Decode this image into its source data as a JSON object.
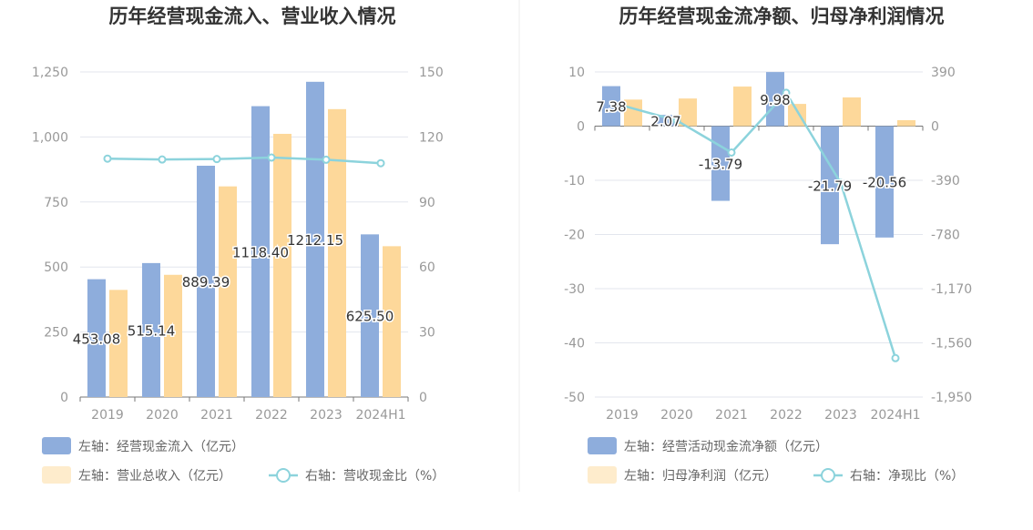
{
  "colors": {
    "bar_primary": "#8eaddc",
    "bar_secondary": "#fdd89a",
    "bar_secondary_legend": "#feeccc",
    "line": "#8cd3dc",
    "axis_text": "#999999",
    "grid": "#e3e6ee",
    "title": "#333333"
  },
  "chart_data": [
    {
      "type": "bar",
      "title": "历年经营现金流入、营业收入情况",
      "categories": [
        "2019",
        "2020",
        "2021",
        "2022",
        "2023",
        "2024H1"
      ],
      "y_left": {
        "ticks": [
          "0",
          "250",
          "500",
          "750",
          "1,000",
          "1,250"
        ],
        "min": 0,
        "max": 1250
      },
      "y_right": {
        "ticks": [
          "0",
          "30",
          "60",
          "90",
          "120",
          "150"
        ],
        "min": 0,
        "max": 150
      },
      "grid": true,
      "legend_position": "bottom-left",
      "series": [
        {
          "name": "左轴：经营现金流入（亿元）",
          "type": "bar",
          "axis": "left",
          "values": [
            453.08,
            515.14,
            889.39,
            1118.4,
            1212.15,
            625.5
          ],
          "labels": [
            "453.08",
            "515.14",
            "889.39",
            "1118.40",
            "1212.15",
            "625.50"
          ]
        },
        {
          "name": "左轴：营业总收入（亿元）",
          "type": "bar",
          "axis": "left",
          "values": [
            412,
            470,
            810,
            1012,
            1107,
            580
          ]
        },
        {
          "name": "右轴：营收现金比（%）",
          "type": "line",
          "axis": "right",
          "values": [
            110.0,
            109.6,
            109.8,
            110.5,
            109.5,
            107.9
          ]
        }
      ]
    },
    {
      "type": "bar",
      "title": "历年经营现金流净额、归母净利润情况",
      "categories": [
        "2019",
        "2020",
        "2021",
        "2022",
        "2023",
        "2024H1"
      ],
      "y_left": {
        "ticks": [
          "-50",
          "-40",
          "-30",
          "-20",
          "-10",
          "0",
          "10"
        ],
        "min": -50,
        "max": 10
      },
      "y_right": {
        "ticks": [
          "-1,950",
          "-1,560",
          "-1,170",
          "-780",
          "-390",
          "0",
          "390"
        ],
        "min": -1950,
        "max": 390
      },
      "grid": true,
      "legend_position": "bottom-left",
      "series": [
        {
          "name": "左轴：经营活动现金流净额（亿元）",
          "type": "bar",
          "axis": "left",
          "values": [
            7.38,
            2.07,
            -13.79,
            9.98,
            -21.79,
            -20.56
          ],
          "labels": [
            "7.38",
            "2.07",
            "-13.79",
            "9.98",
            "-21.79",
            "-20.56"
          ]
        },
        {
          "name": "左轴：归母净利润（亿元）",
          "type": "bar",
          "axis": "left",
          "values": [
            4.9,
            5.1,
            7.3,
            4.1,
            5.3,
            1.1
          ]
        },
        {
          "name": "右轴：净现比（%）",
          "type": "line",
          "axis": "right",
          "values": [
            149,
            40,
            -190,
            240,
            -410,
            -1670
          ]
        }
      ]
    }
  ]
}
